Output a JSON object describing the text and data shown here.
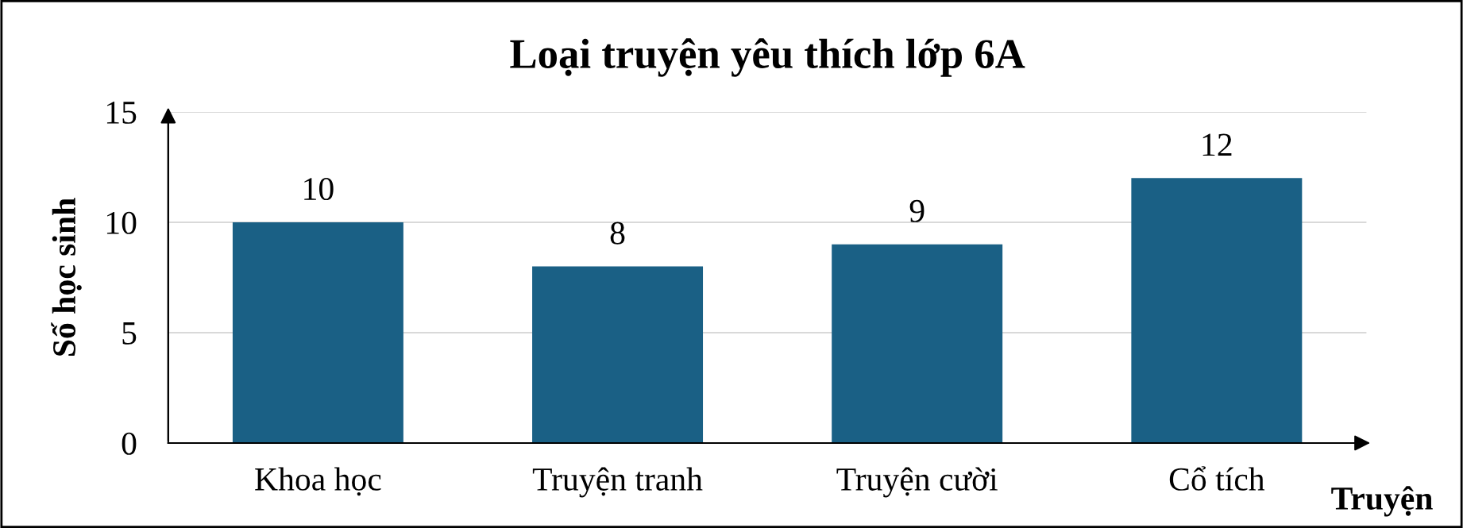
{
  "chart_data": {
    "type": "bar",
    "title": "Loại truyện yêu thích lớp 6A",
    "xlabel": "Truyện",
    "ylabel": "Số học sinh",
    "categories": [
      "Khoa học",
      "Truyện tranh",
      "Truyện cười",
      "Cổ tích"
    ],
    "values": [
      10,
      8,
      9,
      12
    ],
    "color": "#1a6085",
    "ylim": [
      0,
      15
    ],
    "yticks": [
      0,
      5,
      10,
      15
    ],
    "grid": "y",
    "data_labels": true
  }
}
